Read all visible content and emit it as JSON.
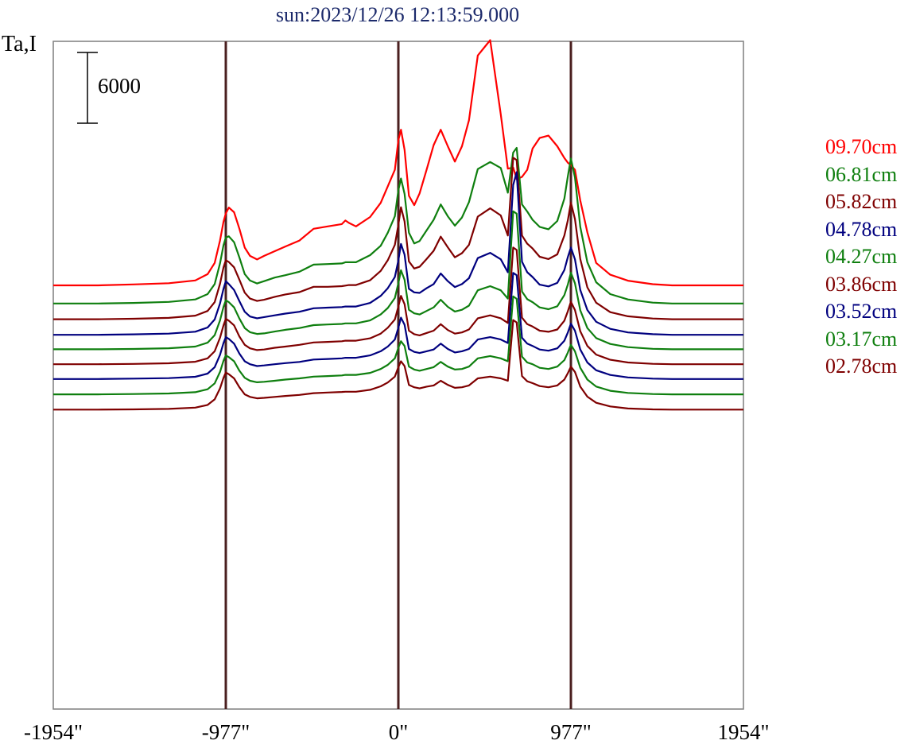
{
  "chart_data": {
    "type": "line",
    "title": "sun:2023/12/26 12:13:59.000",
    "ylabel": "Ta,I",
    "scale_bar_label": "6000",
    "scale_bar_value": 6000,
    "x_ticks": [
      {
        "value": -1954,
        "label": "-1954\""
      },
      {
        "value": -977,
        "label": "-977\""
      },
      {
        "value": 0,
        "label": "0\""
      },
      {
        "value": 977,
        "label": "977\""
      },
      {
        "value": 1954,
        "label": "1954\""
      }
    ],
    "vertical_lines": [
      -977,
      0,
      977
    ],
    "xlim": [
      -1954,
      1954
    ],
    "profile_x": [
      -1954,
      -1700,
      -1500,
      -1300,
      -1150,
      -1080,
      -1040,
      -1010,
      -990,
      -977,
      -960,
      -930,
      -900,
      -870,
      -840,
      -800,
      -760,
      -700,
      -640,
      -560,
      -480,
      -400,
      -320,
      -300,
      -280,
      -240,
      -160,
      -100,
      -60,
      -20,
      0,
      15,
      35,
      60,
      90,
      120,
      160,
      200,
      240,
      280,
      320,
      360,
      400,
      450,
      520,
      580,
      620,
      650,
      670,
      700,
      730,
      760,
      800,
      850,
      900,
      940,
      960,
      977,
      1000,
      1030,
      1070,
      1120,
      1200,
      1300,
      1440,
      1550,
      1700,
      1954
    ],
    "series": [
      {
        "name": "09.70cm",
        "color": "#ff0000",
        "baseline": 0,
        "values": [
          0,
          0,
          80,
          180,
          420,
          950,
          1900,
          3800,
          5400,
          6100,
          6600,
          6200,
          4800,
          3200,
          2500,
          2200,
          2500,
          2900,
          3300,
          3800,
          4800,
          5000,
          5200,
          5500,
          5300,
          5000,
          5800,
          7000,
          8400,
          9800,
          12300,
          13200,
          11500,
          7600,
          6800,
          7800,
          9800,
          11900,
          13200,
          11800,
          10500,
          11800,
          14000,
          19500,
          20800,
          14500,
          9900,
          10000,
          9000,
          9200,
          9800,
          11600,
          12500,
          12700,
          11800,
          10800,
          10400,
          10200,
          9800,
          7200,
          4500,
          1900,
          900,
          400,
          100,
          0,
          0,
          0
        ]
      },
      {
        "name": "06.81cm",
        "color": "#0f7f0f",
        "baseline": -1540,
        "values": [
          0,
          0,
          50,
          140,
          350,
          800,
          1650,
          3400,
          4950,
          5600,
          5700,
          5200,
          3900,
          2500,
          1950,
          1700,
          1900,
          2200,
          2400,
          2700,
          3300,
          3350,
          3400,
          3500,
          3500,
          3500,
          4100,
          4900,
          6000,
          7400,
          9600,
          10600,
          9300,
          6000,
          5100,
          5300,
          6200,
          7100,
          8400,
          7400,
          6600,
          7300,
          8600,
          11400,
          12000,
          11500,
          9400,
          12800,
          13200,
          8400,
          7800,
          7100,
          6500,
          6300,
          7000,
          8900,
          10800,
          12300,
          10700,
          6500,
          3500,
          1800,
          800,
          350,
          80,
          0,
          0,
          0
        ]
      },
      {
        "name": "05.82cm",
        "color": "#7f0000",
        "baseline": -2870,
        "values": [
          0,
          0,
          40,
          110,
          300,
          700,
          1450,
          3000,
          4400,
          5000,
          4850,
          4400,
          3350,
          2250,
          1750,
          1550,
          1650,
          1900,
          2100,
          2300,
          2750,
          2750,
          2800,
          2850,
          2900,
          2900,
          3300,
          4100,
          5000,
          6300,
          8000,
          9500,
          8300,
          4900,
          4300,
          4450,
          5100,
          5800,
          7000,
          6100,
          5250,
          5600,
          6300,
          8700,
          9400,
          8800,
          7100,
          13700,
          13500,
          7100,
          6400,
          6000,
          5300,
          5100,
          5500,
          7100,
          8400,
          9900,
          8500,
          5100,
          2700,
          1400,
          600,
          250,
          60,
          0,
          0,
          0
        ]
      },
      {
        "name": "04.78cm",
        "color": "#00007f",
        "baseline": -4190,
        "values": [
          0,
          0,
          40,
          100,
          260,
          620,
          1300,
          2650,
          3900,
          4550,
          4300,
          3800,
          2850,
          1950,
          1550,
          1400,
          1500,
          1650,
          1800,
          1950,
          2250,
          2300,
          2350,
          2400,
          2400,
          2400,
          2700,
          3300,
          3950,
          4900,
          6300,
          7700,
          6800,
          3900,
          3600,
          3550,
          3950,
          4300,
          5200,
          4550,
          4050,
          4300,
          4800,
          6500,
          6950,
          6400,
          5300,
          12700,
          13800,
          6200,
          5300,
          4900,
          4250,
          4100,
          4400,
          5500,
          6600,
          7400,
          6400,
          3800,
          2100,
          1100,
          500,
          200,
          50,
          0,
          0,
          0
        ]
      },
      {
        "name": "04.27cm",
        "color": "#0f7f0f",
        "baseline": -5420,
        "values": [
          0,
          0,
          30,
          90,
          230,
          560,
          1200,
          2450,
          3600,
          4150,
          4000,
          3550,
          2600,
          1800,
          1450,
          1300,
          1350,
          1500,
          1650,
          1800,
          2050,
          2100,
          2150,
          2200,
          2200,
          2200,
          2450,
          2950,
          3500,
          4350,
          5600,
          6700,
          5900,
          3350,
          3050,
          2950,
          3250,
          3550,
          4200,
          3600,
          3200,
          3350,
          3700,
          5000,
          5350,
          5000,
          4300,
          11700,
          11500,
          4900,
          4250,
          4000,
          3550,
          3400,
          3650,
          4600,
          5500,
          6500,
          5600,
          3300,
          1800,
          950,
          450,
          180,
          40,
          0,
          0,
          0
        ]
      },
      {
        "name": "03.86cm",
        "color": "#7f0000",
        "baseline": -6690,
        "values": [
          0,
          0,
          30,
          80,
          210,
          500,
          1100,
          2250,
          3300,
          3850,
          3700,
          3300,
          2350,
          1650,
          1350,
          1200,
          1250,
          1400,
          1500,
          1650,
          1850,
          1900,
          1950,
          2000,
          2000,
          2000,
          2200,
          2600,
          3100,
          3800,
          4900,
          5800,
          5100,
          2850,
          2550,
          2450,
          2650,
          2850,
          3400,
          2900,
          2600,
          2700,
          2950,
          3900,
          4150,
          3900,
          3500,
          9900,
          9700,
          3950,
          3400,
          3200,
          2850,
          2750,
          2950,
          3700,
          4500,
          5300,
          4600,
          2800,
          1550,
          820,
          380,
          150,
          35,
          0,
          0,
          0
        ]
      },
      {
        "name": "03.52cm",
        "color": "#00007f",
        "baseline": -7940,
        "values": [
          0,
          0,
          30,
          75,
          190,
          460,
          1000,
          2050,
          3050,
          3550,
          3400,
          3000,
          2150,
          1500,
          1250,
          1100,
          1150,
          1250,
          1350,
          1450,
          1650,
          1700,
          1750,
          1800,
          1800,
          1800,
          2000,
          2350,
          2750,
          3350,
          4350,
          5200,
          4600,
          2550,
          2300,
          2200,
          2350,
          2500,
          3000,
          2550,
          2250,
          2350,
          2550,
          3350,
          3550,
          3350,
          3050,
          9000,
          8800,
          3500,
          3000,
          2800,
          2500,
          2400,
          2600,
          3250,
          3950,
          4700,
          4100,
          2500,
          1400,
          740,
          340,
          130,
          30,
          0,
          0,
          0
        ]
      },
      {
        "name": "03.17cm",
        "color": "#0f7f0f",
        "baseline": -9240,
        "values": [
          0,
          0,
          25,
          70,
          180,
          430,
          930,
          1900,
          2850,
          3300,
          3150,
          2800,
          2000,
          1400,
          1150,
          1020,
          1060,
          1150,
          1250,
          1350,
          1500,
          1550,
          1600,
          1650,
          1650,
          1650,
          1820,
          2150,
          2500,
          3050,
          3950,
          4500,
          4100,
          2350,
          2100,
          2000,
          2150,
          2300,
          2750,
          2350,
          2100,
          2150,
          2350,
          3050,
          3250,
          3050,
          2800,
          8300,
          8100,
          3200,
          2700,
          2550,
          2250,
          2150,
          2350,
          2900,
          3550,
          4200,
          3650,
          2250,
          1250,
          660,
          300,
          120,
          25,
          0,
          0,
          0
        ]
      },
      {
        "name": "02.78cm",
        "color": "#7f0000",
        "baseline": -10540,
        "values": [
          0,
          0,
          25,
          65,
          170,
          400,
          870,
          1800,
          2700,
          3150,
          3000,
          2650,
          1900,
          1300,
          1080,
          960,
          1000,
          1080,
          1160,
          1250,
          1400,
          1450,
          1500,
          1520,
          1520,
          1520,
          1680,
          1980,
          2300,
          2800,
          3600,
          4100,
          3700,
          2100,
          1900,
          1800,
          1950,
          2050,
          2450,
          2100,
          1850,
          1900,
          2050,
          2650,
          2800,
          2650,
          2450,
          7600,
          7400,
          2850,
          2400,
          2250,
          2000,
          1900,
          2050,
          2550,
          3100,
          3650,
          3200,
          1950,
          1100,
          580,
          270,
          100,
          20,
          0,
          0,
          0
        ]
      }
    ]
  }
}
